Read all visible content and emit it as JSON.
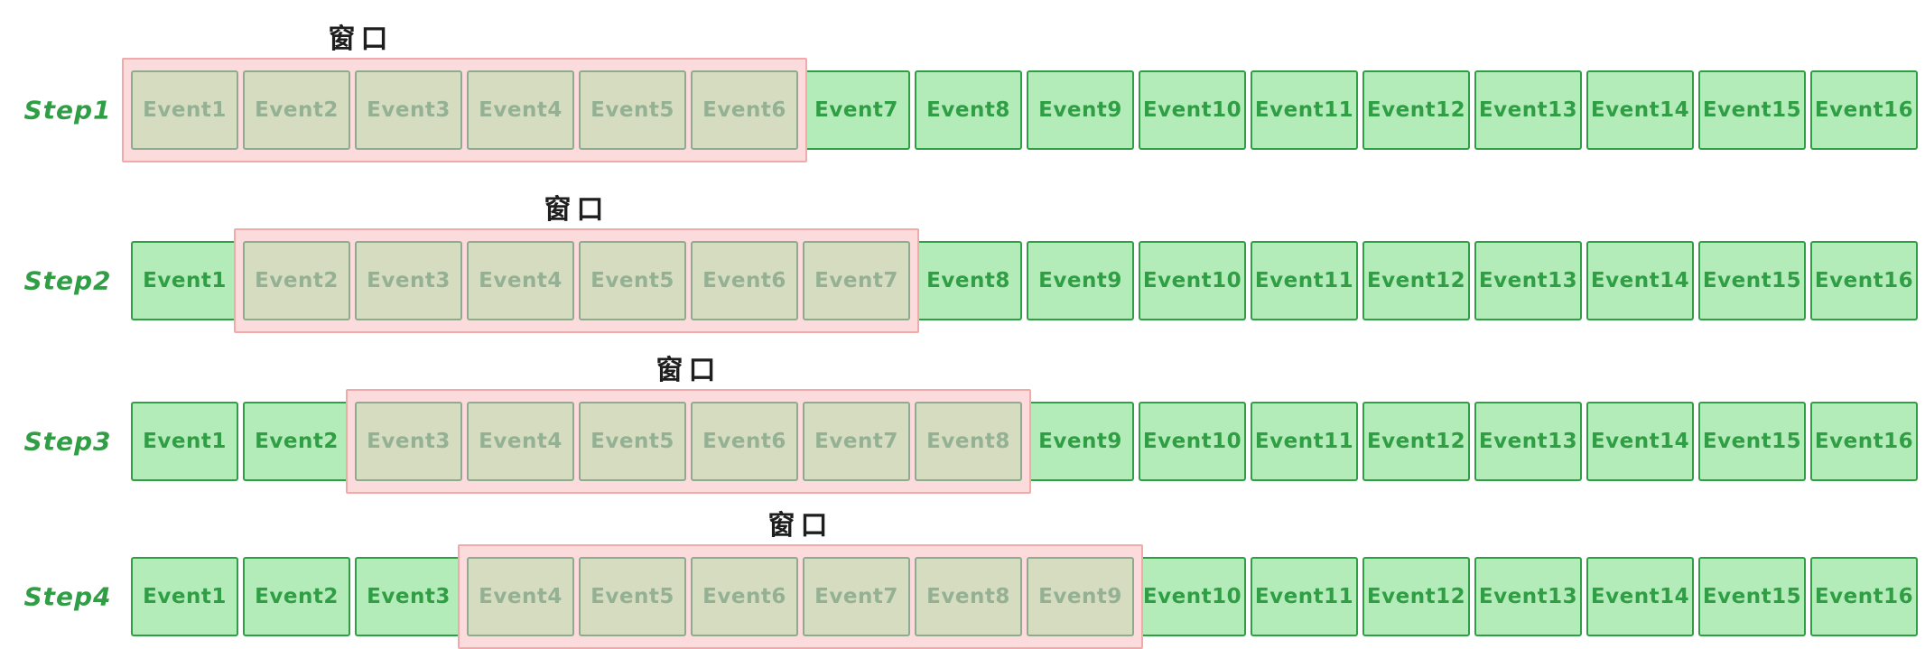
{
  "diagram": {
    "window_label": "窗口",
    "colors": {
      "event_fill": "#b4ecb9",
      "event_border": "#2f9e44",
      "event_text": "#2f9e44",
      "faded_event_fill": "#d6dcc0",
      "faded_event_border": "#8fab8d",
      "faded_event_text": "#94b194",
      "window_fill": "#fbdbdb",
      "window_border": "#f2a9a9",
      "step_label_text": "#2f9e44",
      "window_label_text": "#1e1e1e"
    },
    "steps": [
      {
        "label": "Step1",
        "window_start": 1,
        "window_end": 6,
        "events": [
          "Event1",
          "Event2",
          "Event3",
          "Event4",
          "Event5",
          "Event6",
          "Event7",
          "Event8",
          "Event9",
          "Event10",
          "Event11",
          "Event12",
          "Event13",
          "Event14",
          "Event15",
          "Event16"
        ]
      },
      {
        "label": "Step2",
        "window_start": 2,
        "window_end": 7,
        "events": [
          "Event1",
          "Event2",
          "Event3",
          "Event4",
          "Event5",
          "Event6",
          "Event7",
          "Event8",
          "Event9",
          "Event10",
          "Event11",
          "Event12",
          "Event13",
          "Event14",
          "Event15",
          "Event16"
        ]
      },
      {
        "label": "Step3",
        "window_start": 3,
        "window_end": 8,
        "events": [
          "Event1",
          "Event2",
          "Event3",
          "Event4",
          "Event5",
          "Event6",
          "Event7",
          "Event8",
          "Event9",
          "Event10",
          "Event11",
          "Event12",
          "Event13",
          "Event14",
          "Event15",
          "Event16"
        ]
      },
      {
        "label": "Step4",
        "window_start": 4,
        "window_end": 9,
        "events": [
          "Event1",
          "Event2",
          "Event3",
          "Event4",
          "Event5",
          "Event6",
          "Event7",
          "Event8",
          "Event9",
          "Event10",
          "Event11",
          "Event12",
          "Event13",
          "Event14",
          "Event15",
          "Event16"
        ]
      }
    ]
  }
}
